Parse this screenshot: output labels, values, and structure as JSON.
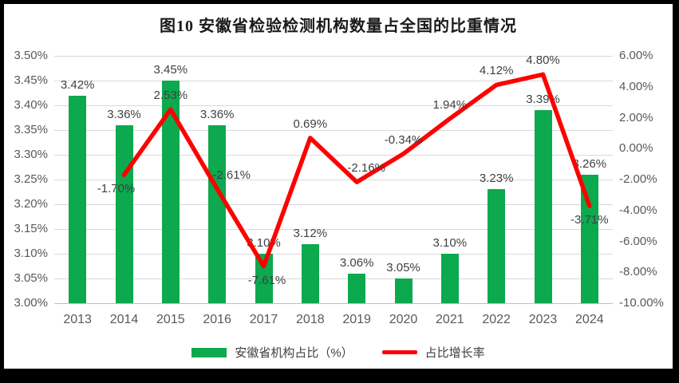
{
  "title": "图10 安徽省检验检测机构数量占全国的比重情况",
  "legend": {
    "bars": "安徽省机构占比（%）",
    "line": "占比增长率"
  },
  "colors": {
    "bar": "#0CA94F",
    "line": "#FE0000",
    "grid": "#D9D9D9",
    "axis_line": "#BFBFBF",
    "tick_text": "#595959",
    "label_text": "#404040"
  },
  "chart_data": {
    "type": "bar",
    "subtype": "bar+line combo, dual axis",
    "title": "图10 安徽省检验检测机构数量占全国的比重情况",
    "categories": [
      "2013",
      "2014",
      "2015",
      "2016",
      "2017",
      "2018",
      "2019",
      "2020",
      "2021",
      "2022",
      "2023",
      "2024"
    ],
    "series": [
      {
        "name": "安徽省机构占比（%）",
        "type": "bar",
        "axis": "left",
        "values": [
          3.42,
          3.36,
          3.45,
          3.36,
          3.1,
          3.12,
          3.06,
          3.05,
          3.1,
          3.23,
          3.39,
          3.26
        ],
        "labels": [
          "3.42%",
          "3.36%",
          "3.45%",
          "3.36%",
          "3.10%",
          "3.12%",
          "3.06%",
          "3.05%",
          "3.10%",
          "3.23%",
          "3.39%",
          "3.26%"
        ]
      },
      {
        "name": "占比增长率",
        "type": "line",
        "axis": "right",
        "values": [
          null,
          -1.7,
          2.53,
          -2.61,
          -7.61,
          0.69,
          -2.16,
          -0.34,
          1.94,
          4.12,
          4.8,
          -3.71
        ],
        "labels": [
          null,
          "-1.70%",
          "2.53%",
          "-2.61%",
          "-7.61%",
          "0.69%",
          "-2.16%",
          "-0.34%",
          "1.94%",
          "4.12%",
          "4.80%",
          "-3.71%"
        ]
      }
    ],
    "left_axis": {
      "min": 3.0,
      "max": 3.5,
      "step": 0.05,
      "ticks": [
        "3.50%",
        "3.45%",
        "3.40%",
        "3.35%",
        "3.30%",
        "3.25%",
        "3.20%",
        "3.15%",
        "3.10%",
        "3.05%",
        "3.00%"
      ]
    },
    "right_axis": {
      "min": -10.0,
      "max": 6.0,
      "step": 2.0,
      "ticks": [
        "6.00%",
        "4.00%",
        "2.00%",
        "0.00%",
        "-2.00%",
        "-4.00%",
        "-6.00%",
        "-8.00%",
        "-10.00%"
      ]
    },
    "grid": true,
    "legend_position": "bottom",
    "line_label_layout": [
      null,
      {
        "side": "below",
        "dx": -10
      },
      {
        "side": "above",
        "dx": 0
      },
      {
        "side": "above",
        "dx": 18
      },
      {
        "side": "below",
        "dx": 4
      },
      {
        "side": "above",
        "dx": 0
      },
      {
        "side": "above",
        "dx": 12
      },
      {
        "side": "above",
        "dx": 0
      },
      {
        "side": "above",
        "dx": 0
      },
      {
        "side": "above",
        "dx": 0
      },
      {
        "side": "above",
        "dx": 0
      },
      {
        "side": "below",
        "dx": 0
      }
    ]
  }
}
